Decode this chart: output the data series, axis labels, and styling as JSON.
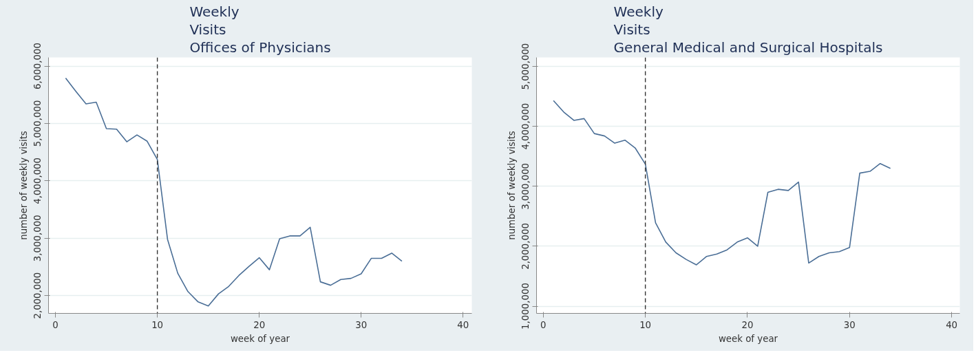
{
  "chart_data": [
    {
      "type": "line",
      "title": "Weekly\nVisits\nOffices of Physicians",
      "xlabel": "week of year",
      "ylabel": "number of weekly visits",
      "x": [
        1,
        2,
        3,
        4,
        5,
        6,
        7,
        8,
        9,
        10,
        11,
        12,
        13,
        14,
        15,
        16,
        17,
        18,
        19,
        20,
        21,
        22,
        23,
        24,
        25,
        26,
        27,
        28,
        29,
        30,
        31,
        32,
        33,
        34
      ],
      "series": [
        {
          "color": "#4a6e96",
          "values": [
            5790000,
            5560000,
            5340000,
            5370000,
            4910000,
            4900000,
            4680000,
            4800000,
            4690000,
            4370000,
            2980000,
            2390000,
            2070000,
            1890000,
            1820000,
            2030000,
            2160000,
            2350000,
            2510000,
            2660000,
            2450000,
            2990000,
            3040000,
            3040000,
            3190000,
            2240000,
            2180000,
            2280000,
            2300000,
            2380000,
            2650000,
            2650000,
            2740000,
            2600000
          ]
        }
      ],
      "xlim": [
        -0.68,
        40.86
      ],
      "xticks": [
        0,
        10,
        20,
        30,
        40
      ],
      "ylim": [
        1690000,
        6150000
      ],
      "yticks": [
        {
          "value": 2000000,
          "label": "2,000,000"
        },
        {
          "value": 3000000,
          "label": "3,000,000"
        },
        {
          "value": 4000000,
          "label": "4,000,000"
        },
        {
          "value": 5000000,
          "label": "5,000,000"
        },
        {
          "value": 6000000,
          "label": "6,000,000"
        }
      ],
      "ref_lines": [
        {
          "axis": "x",
          "value": 10,
          "color": "#333333",
          "line_style": "dashed"
        }
      ],
      "grid": "y",
      "line_style": "solid"
    },
    {
      "type": "line",
      "title": "Weekly\nVisits\nGeneral Medical and Surgical Hospitals",
      "xlabel": "week of year",
      "ylabel": "number of weekly visits",
      "x": [
        1,
        2,
        3,
        4,
        5,
        6,
        7,
        8,
        9,
        10,
        11,
        12,
        13,
        14,
        15,
        16,
        17,
        18,
        19,
        20,
        21,
        22,
        23,
        24,
        25,
        26,
        27,
        28,
        29,
        30,
        31,
        32,
        33,
        34
      ],
      "series": [
        {
          "color": "#4a6e96",
          "values": [
            4430000,
            4240000,
            4100000,
            4130000,
            3880000,
            3840000,
            3720000,
            3770000,
            3640000,
            3370000,
            2390000,
            2070000,
            1890000,
            1780000,
            1690000,
            1830000,
            1870000,
            1940000,
            2070000,
            2140000,
            2000000,
            2900000,
            2950000,
            2930000,
            3070000,
            1720000,
            1830000,
            1890000,
            1910000,
            1980000,
            3220000,
            3250000,
            3380000,
            3300000
          ]
        }
      ],
      "xlim": [
        -0.66,
        40.8
      ],
      "xticks": [
        0,
        10,
        20,
        30,
        40
      ],
      "ylim": [
        880000,
        5150000
      ],
      "yticks": [
        {
          "value": 1000000,
          "label": "1,000,000"
        },
        {
          "value": 2000000,
          "label": "2,000,000"
        },
        {
          "value": 3000000,
          "label": "3,000,000"
        },
        {
          "value": 4000000,
          "label": "4,000,000"
        },
        {
          "value": 5000000,
          "label": "5,000,000"
        }
      ],
      "ref_lines": [
        {
          "axis": "x",
          "value": 10,
          "color": "#333333",
          "line_style": "dashed"
        }
      ],
      "grid": "y",
      "line_style": "solid"
    }
  ]
}
